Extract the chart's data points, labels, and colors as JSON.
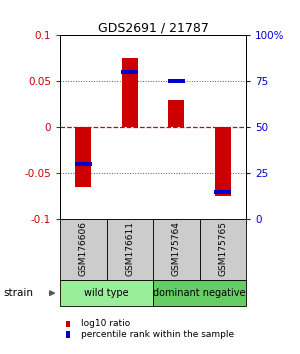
{
  "title": "GDS2691 / 21787",
  "samples": [
    "GSM176606",
    "GSM176611",
    "GSM175764",
    "GSM175765"
  ],
  "log10_ratios": [
    -0.065,
    0.075,
    0.03,
    -0.075
  ],
  "percentile_ranks": [
    0.3,
    0.8,
    0.75,
    0.15
  ],
  "ylim": [
    -0.1,
    0.1
  ],
  "yticks_left": [
    -0.1,
    -0.05,
    0,
    0.05,
    0.1
  ],
  "yticks_right": [
    0,
    25,
    50,
    75,
    100
  ],
  "zero_line_color": "#cc0000",
  "dotted_line_color": "#555555",
  "bar_color": "#cc0000",
  "blue_marker_color": "#0000cc",
  "groups": [
    {
      "name": "wild type",
      "samples": [
        0,
        1
      ],
      "color": "#99ee99"
    },
    {
      "name": "dominant negative",
      "samples": [
        2,
        3
      ],
      "color": "#66cc66"
    }
  ],
  "group_label": "strain",
  "legend_items": [
    {
      "color": "#cc0000",
      "label": "log10 ratio"
    },
    {
      "color": "#0000cc",
      "label": "percentile rank within the sample"
    }
  ],
  "background_color": "#ffffff",
  "sample_box_color": "#cccccc"
}
